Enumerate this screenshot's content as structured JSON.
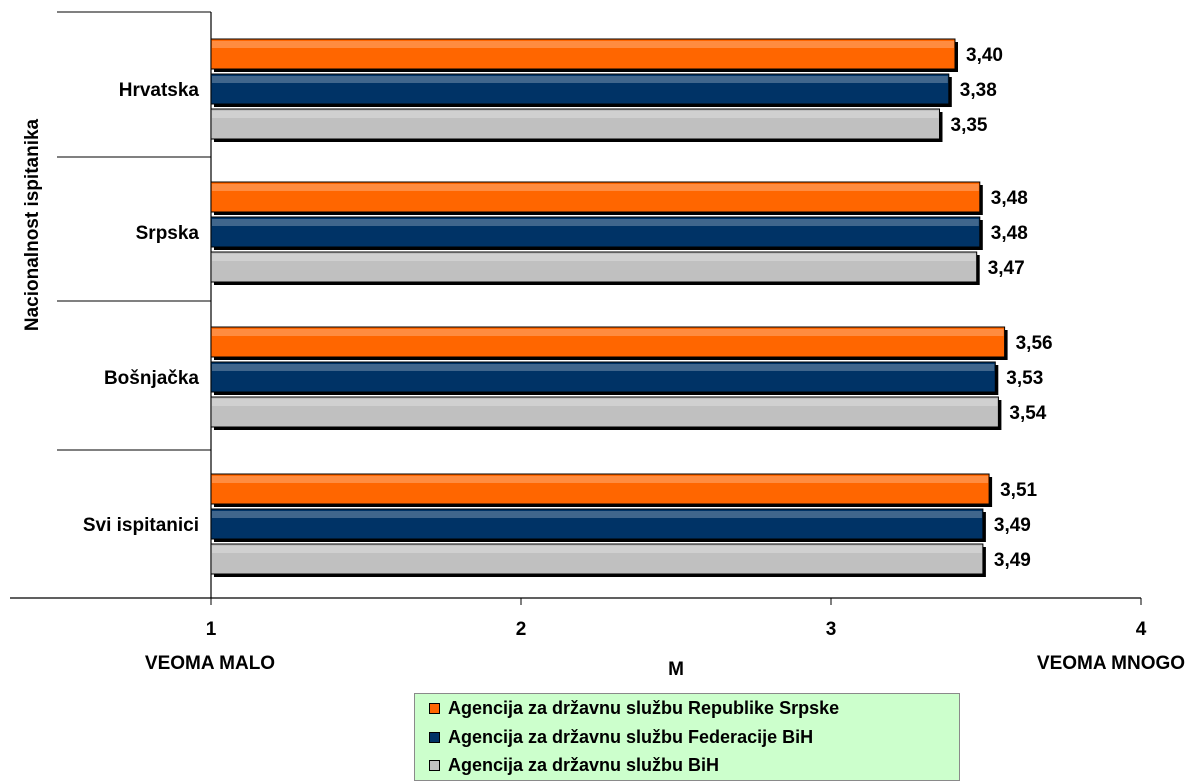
{
  "chart_data": {
    "type": "bar",
    "orientation": "horizontal",
    "categories": [
      "Hrvatska",
      "Srpska",
      "Bošnjačka",
      "Svi ispitanici"
    ],
    "series": [
      {
        "name": "Agencija za državnu službu Republike Srpske",
        "color": "#ff6600",
        "values": [
          3.4,
          3.48,
          3.56,
          3.51
        ],
        "labels": [
          "3,40",
          "3,48",
          "3,56",
          "3,51"
        ]
      },
      {
        "name": "Agencija za državnu službu Federacije BiH",
        "color": "#003366",
        "values": [
          3.38,
          3.48,
          3.53,
          3.49
        ],
        "labels": [
          "3,38",
          "3,48",
          "3,53",
          "3,49"
        ]
      },
      {
        "name": "Agencija za državnu službu BiH",
        "color": "#c0c0c0",
        "values": [
          3.35,
          3.47,
          3.54,
          3.49
        ],
        "labels": [
          "3,35",
          "3,47",
          "3,54",
          "3,49"
        ]
      }
    ],
    "xlim": [
      1,
      4
    ],
    "xticks": [
      "1",
      "2",
      "3",
      "4"
    ],
    "xlabel": "M",
    "ylabel": "Nacionalnost ispitanika",
    "x_min_label": "VEOMA MALO",
    "x_max_label": "VEOMA MNOGO",
    "legend_position": "bottom"
  }
}
